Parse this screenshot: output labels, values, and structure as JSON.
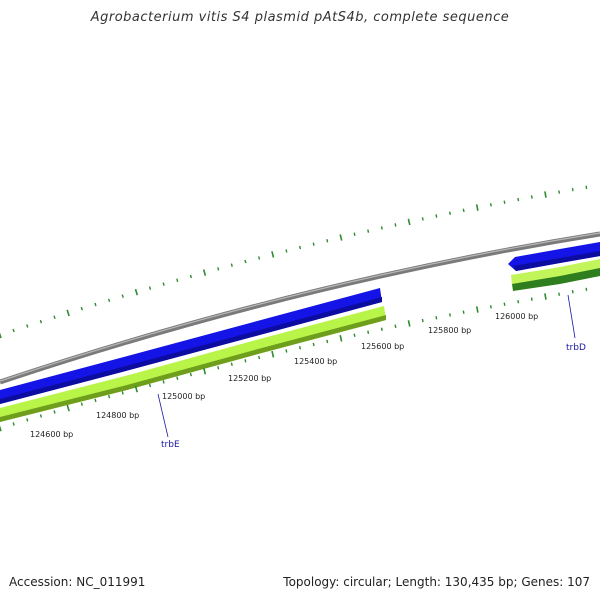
{
  "title": "Agrobacterium vitis S4 plasmid pAtS4b, complete sequence",
  "footer": {
    "accession": "Accession: NC_011991",
    "summary": "Topology: circular; Length: 130,435 bp; Genes: 107"
  },
  "scale_labels": [
    {
      "id": "bp-124600",
      "text": "124600 bp"
    },
    {
      "id": "bp-124800",
      "text": "124800 bp"
    },
    {
      "id": "bp-125000",
      "text": "125000 bp"
    },
    {
      "id": "bp-125200",
      "text": "125200 bp"
    },
    {
      "id": "bp-125400",
      "text": "125400 bp"
    },
    {
      "id": "bp-125600",
      "text": "125600 bp"
    },
    {
      "id": "bp-125800",
      "text": "125800 bp"
    },
    {
      "id": "bp-126000",
      "text": "126000 bp"
    }
  ],
  "genes": [
    {
      "name": "trbE"
    },
    {
      "name": "trbD"
    }
  ],
  "colors": {
    "backbone": "#888888",
    "cds": "#1010e0",
    "gene": "#b4f03c",
    "gene_dark": "#6a9a1a",
    "gene_dark2": "#2e7d1e",
    "ticks": "#2e8b2e",
    "label": "#1a1aa8"
  }
}
